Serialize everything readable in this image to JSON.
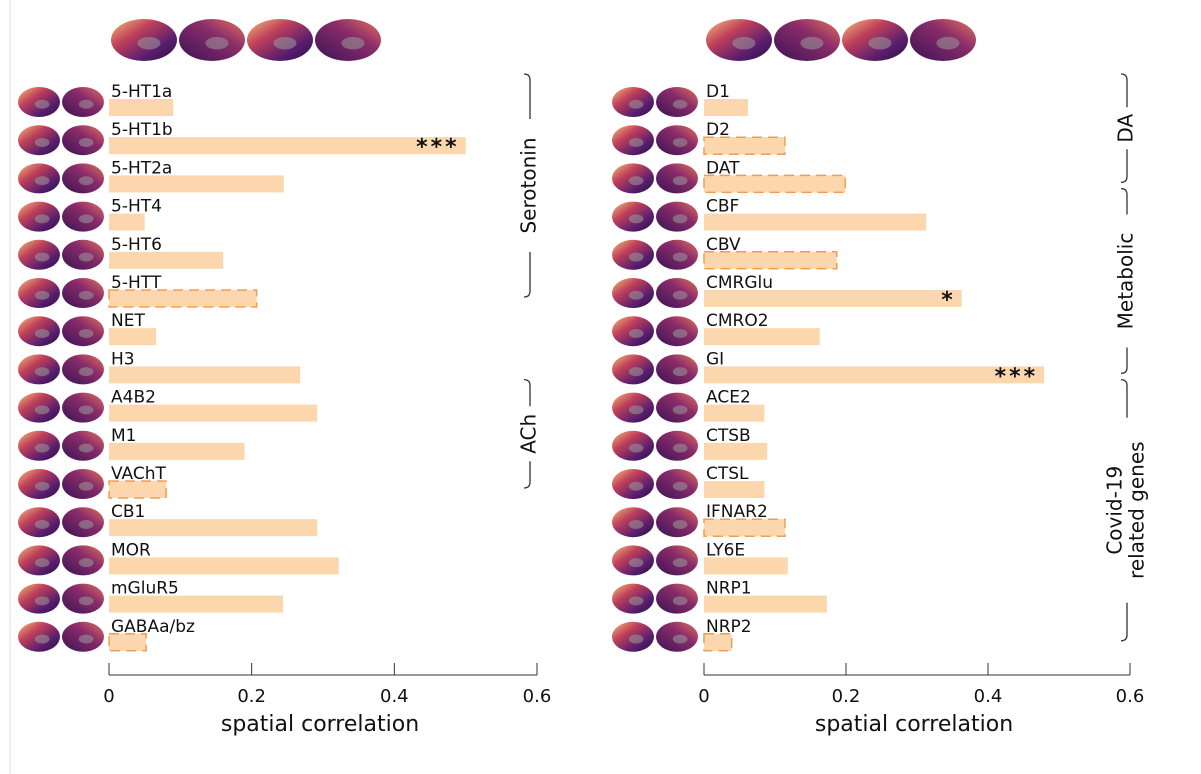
{
  "chart_data": [
    {
      "type": "bar",
      "orientation": "horizontal",
      "color": "#fcd6ad",
      "dash_color": "#ef9f55",
      "categories": [
        "5-HT1a",
        "5-HT1b",
        "5-HT2a",
        "5-HT4",
        "5-HT6",
        "5-HTT",
        "NET",
        "H3",
        "A4B2",
        "M1",
        "VAChT",
        "CB1",
        "MOR",
        "mGluR5",
        "GABAa/bz"
      ],
      "values": [
        0.09,
        0.5,
        0.245,
        0.05,
        0.16,
        0.207,
        0.066,
        0.268,
        0.292,
        0.19,
        0.08,
        0.292,
        0.322,
        0.244,
        0.052
      ],
      "dashed": [
        false,
        false,
        false,
        false,
        false,
        true,
        false,
        false,
        false,
        false,
        true,
        false,
        false,
        false,
        true
      ],
      "annotations": [
        {
          "index": 1,
          "text": "***"
        }
      ],
      "groups": [
        {
          "label": [
            "Serotonin"
          ],
          "start": 0,
          "end": 5
        },
        {
          "label": [
            "ACh"
          ],
          "start": 8,
          "end": 10
        }
      ],
      "xlim": [
        0,
        0.6
      ],
      "xticks": [
        0,
        0.2,
        0.4,
        0.6
      ],
      "xlabel": "spatial correlation"
    },
    {
      "type": "bar",
      "orientation": "horizontal",
      "color": "#fcd6ad",
      "dash_color": "#ef9f55",
      "categories": [
        "D1",
        "D2",
        "DAT",
        "CBF",
        "CBV",
        "CMRGlu",
        "CMRO2",
        "GI",
        "ACE2",
        "CTSB",
        "CTSL",
        "IFNAR2",
        "LY6E",
        "NRP1",
        "NRP2"
      ],
      "values": [
        0.062,
        0.114,
        0.199,
        0.313,
        0.187,
        0.363,
        0.163,
        0.479,
        0.085,
        0.089,
        0.085,
        0.114,
        0.118,
        0.173,
        0.039
      ],
      "dashed": [
        false,
        true,
        true,
        false,
        true,
        false,
        false,
        false,
        false,
        false,
        false,
        true,
        false,
        false,
        true
      ],
      "annotations": [
        {
          "index": 5,
          "text": "*"
        },
        {
          "index": 7,
          "text": "***"
        }
      ],
      "groups": [
        {
          "label": [
            "DA"
          ],
          "start": 0,
          "end": 2
        },
        {
          "label": [
            "Metabolic"
          ],
          "start": 3,
          "end": 7
        },
        {
          "label": [
            "Covid-19",
            "related genes"
          ],
          "start": 8,
          "end": 14
        }
      ],
      "xlim": [
        0,
        0.6
      ],
      "xticks": [
        0,
        0.2,
        0.4,
        0.6
      ],
      "xlabel": "spatial correlation"
    }
  ]
}
